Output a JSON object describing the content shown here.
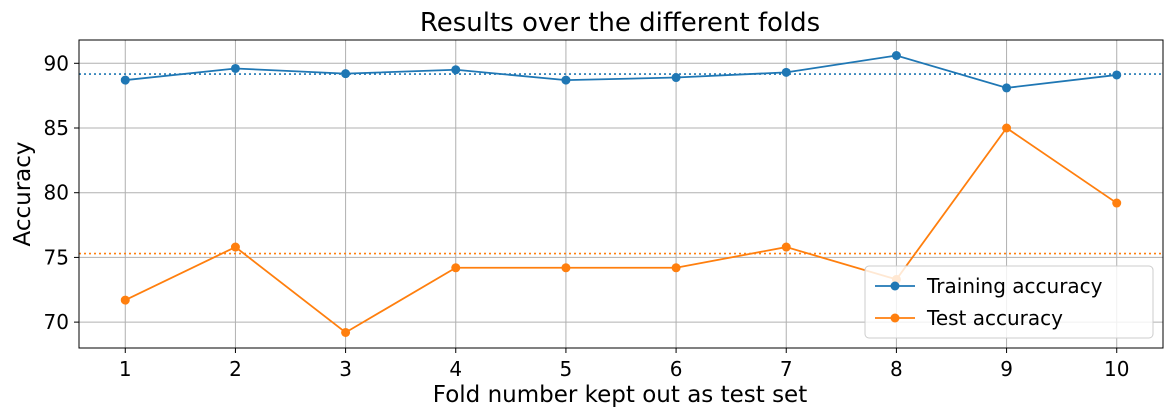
{
  "chart_data": {
    "type": "line",
    "title": "Results over the different folds",
    "xlabel": "Fold number kept out as test set",
    "ylabel": "Accuracy",
    "x": [
      1,
      2,
      3,
      4,
      5,
      6,
      7,
      8,
      9,
      10
    ],
    "xticks": [
      "1",
      "2",
      "3",
      "4",
      "5",
      "6",
      "7",
      "8",
      "9",
      "10"
    ],
    "yticks": [
      "70",
      "75",
      "80",
      "85",
      "90"
    ],
    "xlim": [
      0.58,
      10.42
    ],
    "ylim": [
      68.0,
      91.8
    ],
    "grid": true,
    "legend_position": "bottom-right",
    "series": [
      {
        "name": "Training accuracy",
        "color": "#1f77b4",
        "marker": "circle",
        "values": [
          88.7,
          89.6,
          89.2,
          89.5,
          88.7,
          88.9,
          89.3,
          90.6,
          88.1,
          89.1
        ],
        "mean_line": 89.17
      },
      {
        "name": "Test accuracy",
        "color": "#ff7f0e",
        "marker": "circle",
        "values": [
          71.7,
          75.8,
          69.2,
          74.2,
          74.2,
          74.2,
          75.8,
          73.3,
          85.0,
          79.2
        ],
        "mean_line": 75.3
      }
    ]
  }
}
